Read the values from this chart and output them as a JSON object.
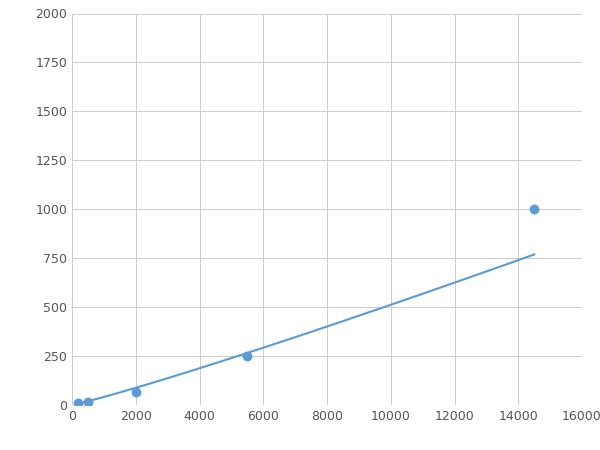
{
  "x": [
    200,
    500,
    2000,
    5500,
    14500
  ],
  "y": [
    10,
    15,
    65,
    250,
    1000
  ],
  "line_color": "#5B9BD5",
  "marker_color": "#5B9BD5",
  "marker_size": 5,
  "line_width": 1.5,
  "xlim": [
    0,
    16000
  ],
  "ylim": [
    0,
    2000
  ],
  "xticks": [
    0,
    2000,
    4000,
    6000,
    8000,
    10000,
    12000,
    14000,
    16000
  ],
  "yticks": [
    0,
    250,
    500,
    750,
    1000,
    1250,
    1500,
    1750,
    2000
  ],
  "grid_color": "#CCCCCC",
  "background_color": "#FFFFFF",
  "figsize": [
    6.0,
    4.5
  ],
  "dpi": 100
}
